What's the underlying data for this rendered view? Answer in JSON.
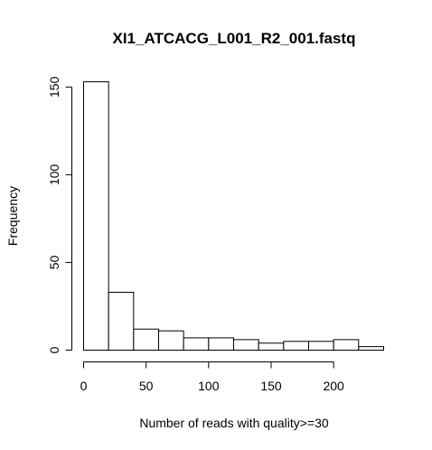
{
  "chart_data": {
    "type": "bar",
    "title": "XI1_ATCACG_L001_R2_001.fastq",
    "xlabel": "Number of reads with quality>=30",
    "ylabel": "Frequency",
    "bins": [
      {
        "start": 0,
        "end": 20,
        "count": 153
      },
      {
        "start": 20,
        "end": 40,
        "count": 33
      },
      {
        "start": 40,
        "end": 60,
        "count": 12
      },
      {
        "start": 60,
        "end": 80,
        "count": 11
      },
      {
        "start": 80,
        "end": 100,
        "count": 7
      },
      {
        "start": 100,
        "end": 120,
        "count": 7
      },
      {
        "start": 120,
        "end": 140,
        "count": 6
      },
      {
        "start": 140,
        "end": 160,
        "count": 4
      },
      {
        "start": 160,
        "end": 180,
        "count": 5
      },
      {
        "start": 180,
        "end": 200,
        "count": 5
      },
      {
        "start": 200,
        "end": 220,
        "count": 6
      },
      {
        "start": 220,
        "end": 240,
        "count": 2
      }
    ],
    "xlim": [
      0,
      240
    ],
    "ylim": [
      0,
      153
    ],
    "xticks": [
      "0",
      "50",
      "100",
      "150",
      "200"
    ],
    "yticks": [
      "0",
      "50",
      "100",
      "150"
    ],
    "grid": false
  }
}
